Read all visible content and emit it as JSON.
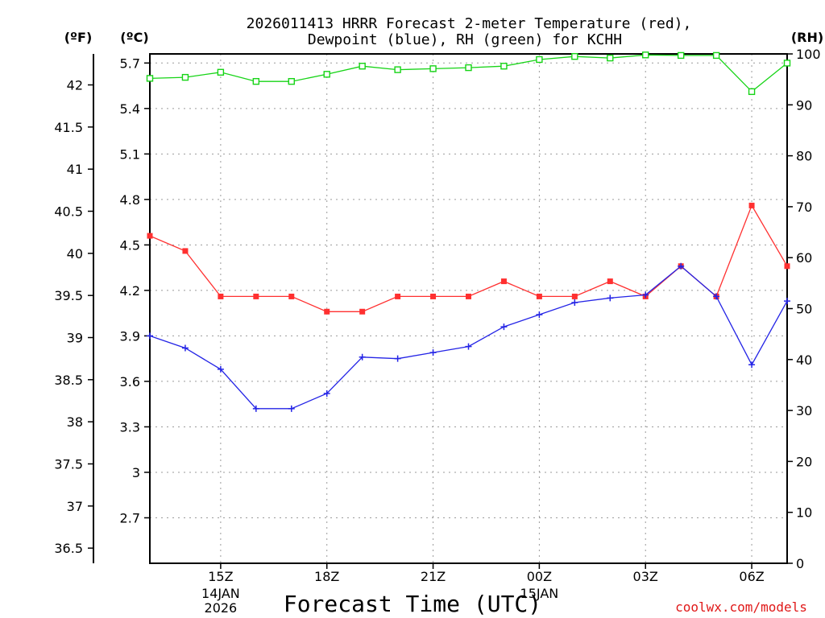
{
  "chart_data": {
    "type": "line",
    "title_line1": "2026011413 HRRR Forecast 2-meter Temperature (red),",
    "title_line2": "Dewpoint (blue), RH (green) for KCHH",
    "unit_f": "(ºF)",
    "unit_c": "(ºC)",
    "unit_rh": "(RH)",
    "xlabel": "Forecast Time (UTC)",
    "credit": "coolwx.com/models",
    "x_hours": [
      13,
      14,
      15,
      16,
      17,
      18,
      19,
      20,
      21,
      22,
      23,
      24,
      25,
      26,
      27,
      28,
      29,
      30,
      31
    ],
    "xlim": [
      13,
      31
    ],
    "x_ticks": [
      {
        "hour": 15,
        "label": "15Z",
        "sub1": "14JAN",
        "sub2": "2026"
      },
      {
        "hour": 18,
        "label": "18Z",
        "sub1": "",
        "sub2": ""
      },
      {
        "hour": 21,
        "label": "21Z",
        "sub1": "",
        "sub2": ""
      },
      {
        "hour": 24,
        "label": "00Z",
        "sub1": "15JAN",
        "sub2": ""
      },
      {
        "hour": 27,
        "label": "03Z",
        "sub1": "",
        "sub2": ""
      },
      {
        "hour": 30,
        "label": "06Z",
        "sub1": "",
        "sub2": ""
      }
    ],
    "celsius_axis": {
      "range": [
        2.4,
        5.76
      ],
      "ticks": [
        2.7,
        3,
        3.3,
        3.6,
        3.9,
        4.2,
        4.5,
        4.8,
        5.1,
        5.4,
        5.7
      ],
      "tick_labels": [
        "2.7",
        "3",
        "3.3",
        "3.6",
        "3.9",
        "4.2",
        "4.5",
        "4.8",
        "5.1",
        "5.4",
        "5.7"
      ]
    },
    "fahrenheit_axis": {
      "ticks": [
        36.5,
        37,
        37.5,
        38,
        38.5,
        39,
        39.5,
        40,
        40.5,
        41,
        41.5,
        42
      ],
      "tick_labels": [
        "36.5",
        "37",
        "37.5",
        "38",
        "38.5",
        "39",
        "39.5",
        "40",
        "40.5",
        "41",
        "41.5",
        "42"
      ]
    },
    "rh_axis": {
      "range": [
        0,
        100
      ],
      "ticks": [
        0,
        10,
        20,
        30,
        40,
        50,
        60,
        70,
        80,
        90,
        100
      ],
      "tick_labels": [
        "0",
        "10",
        "20",
        "30",
        "40",
        "50",
        "60",
        "70",
        "80",
        "90",
        "100"
      ]
    },
    "series": [
      {
        "name": "Temperature",
        "units": "C",
        "color": "#ff3030",
        "marker": "filled-square",
        "values": [
          4.56,
          4.46,
          4.16,
          4.16,
          4.16,
          4.06,
          4.06,
          4.16,
          4.16,
          4.16,
          4.26,
          4.16,
          4.16,
          4.26,
          4.16,
          4.36,
          4.16,
          4.76,
          4.36
        ]
      },
      {
        "name": "Dewpoint",
        "units": "C",
        "color": "#2424e6",
        "marker": "plus",
        "values": [
          3.9,
          3.82,
          3.68,
          3.42,
          3.42,
          3.52,
          3.76,
          3.75,
          3.79,
          3.83,
          3.96,
          4.04,
          4.12,
          4.15,
          4.17,
          4.36,
          4.16,
          3.71,
          4.13
        ]
      },
      {
        "name": "RH",
        "units": "%",
        "color": "#16d416",
        "marker": "open-square",
        "values": [
          95.2,
          95.4,
          96.4,
          94.6,
          94.6,
          96.0,
          97.6,
          96.9,
          97.1,
          97.3,
          97.6,
          98.9,
          99.5,
          99.2,
          99.8,
          99.7,
          99.7,
          92.6,
          98.2
        ]
      }
    ]
  }
}
